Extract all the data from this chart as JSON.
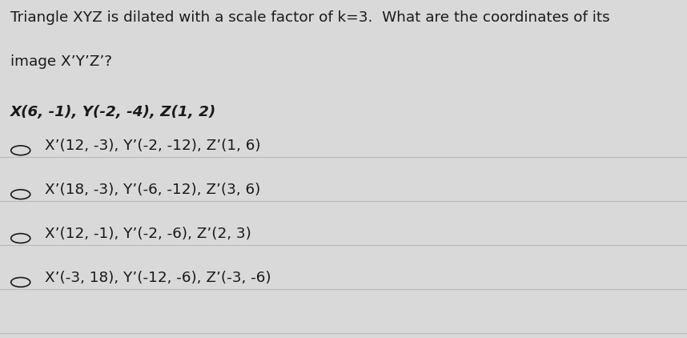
{
  "background_color": "#d9d9d9",
  "question_line1": "Triangle XYZ is dilated with a scale factor of k=3.  What are the coordinates of its",
  "question_line2": "image X’Y’Z’?",
  "given": "X(6, -1), Y(-2, -4), Z(1, 2)",
  "options": [
    "X’(12, -3), Y’(-2, -12), Z’(1, 6)",
    "X’(18, -3), Y’(-6, -12), Z’(3, 6)",
    "X’(12, -1), Y’(-2, -6), Z’(2, 3)",
    "X’(-3, 18), Y’(-12, -6), Z’(-3, -6)"
  ],
  "divider_color": "#b8b8b8",
  "text_color": "#1a1a1a",
  "question_fontsize": 13.2,
  "given_fontsize": 13.2,
  "option_fontsize": 13.2,
  "circle_color": "#1a1a1a"
}
